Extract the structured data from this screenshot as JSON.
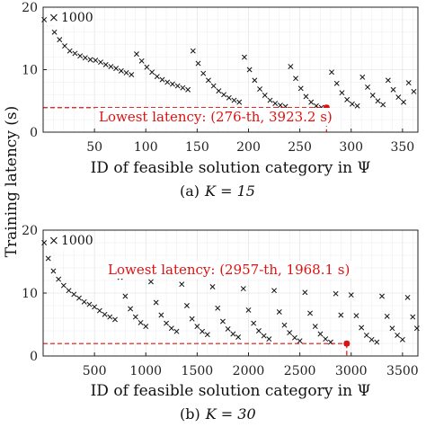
{
  "chart_data": [
    {
      "type": "scatter",
      "caption_prefix": "(a)",
      "caption_math": "K = 15",
      "xlabel": "ID of feasible solution category in Ψ",
      "ylabel": "Training latency (s)",
      "xlim": [
        0,
        365
      ],
      "ylim": [
        0,
        20
      ],
      "xticks": [
        50,
        100,
        150,
        200,
        250,
        300,
        350
      ],
      "yticks": [
        0,
        10,
        20
      ],
      "grid": true,
      "legend": {
        "marker": "×",
        "label": "1000",
        "placement": "top-left"
      },
      "annotation": {
        "text": "Lowest latency: (276-th, 3923.2 s)",
        "x": 276,
        "y": 3.92
      },
      "series": [
        {
          "marker": "x",
          "x": [
            1,
            6,
            11,
            16,
            21,
            26,
            31,
            36,
            41,
            46,
            51,
            56,
            61,
            66,
            71,
            76,
            81,
            86,
            91,
            96,
            101,
            106,
            111,
            116,
            121,
            126,
            131,
            136,
            141,
            146,
            151,
            156,
            161,
            166,
            171,
            176,
            181,
            186,
            191,
            196,
            201,
            206,
            211,
            216,
            221,
            226,
            231,
            236,
            241,
            246,
            251,
            256,
            261,
            266,
            271,
            276,
            281,
            286,
            291,
            296,
            301,
            306,
            311,
            316,
            321,
            326,
            331,
            336,
            341,
            346,
            351,
            356,
            361
          ],
          "y": [
            18.0,
            17.5,
            16.0,
            14.8,
            13.8,
            13.0,
            12.6,
            12.2,
            11.9,
            11.6,
            11.5,
            11.2,
            10.8,
            10.5,
            10.2,
            9.8,
            9.5,
            9.2,
            12.5,
            11.4,
            10.4,
            9.6,
            8.9,
            8.4,
            8.0,
            7.7,
            7.4,
            7.1,
            6.8,
            13.0,
            11.0,
            9.4,
            8.3,
            7.4,
            6.6,
            6.0,
            5.5,
            5.1,
            4.8,
            12.0,
            10.0,
            8.3,
            6.9,
            5.9,
            5.1,
            4.6,
            4.3,
            4.1,
            10.5,
            8.6,
            7.0,
            5.7,
            4.8,
            4.2,
            3.95,
            3.92,
            9.6,
            7.8,
            6.3,
            5.2,
            4.5,
            4.2,
            8.8,
            7.2,
            5.9,
            5.0,
            4.4,
            8.3,
            6.8,
            5.6,
            4.8,
            7.9,
            6.5
          ]
        }
      ]
    },
    {
      "type": "scatter",
      "caption_prefix": "(b)",
      "caption_math": "K = 30",
      "xlabel": "ID of feasible solution category in Ψ",
      "ylabel": "Training latency (s)",
      "xlim": [
        0,
        3650
      ],
      "ylim": [
        0,
        20
      ],
      "xticks": [
        500,
        1000,
        1500,
        2000,
        2500,
        3000,
        3500
      ],
      "yticks": [
        0,
        10,
        20
      ],
      "grid": true,
      "legend": {
        "marker": "×",
        "label": "1000",
        "placement": "top-left"
      },
      "annotation": {
        "text": "Lowest latency: (2957-th, 1968.1 s)",
        "x": 2957,
        "y": 1.97
      },
      "series": [
        {
          "marker": "x",
          "x": [
            10,
            50,
            100,
            150,
            200,
            250,
            300,
            350,
            400,
            450,
            500,
            550,
            600,
            650,
            700,
            750,
            800,
            850,
            900,
            950,
            1000,
            1050,
            1100,
            1150,
            1200,
            1250,
            1300,
            1350,
            1400,
            1450,
            1500,
            1550,
            1600,
            1650,
            1700,
            1750,
            1800,
            1850,
            1900,
            1950,
            2000,
            2050,
            2100,
            2150,
            2200,
            2250,
            2300,
            2350,
            2400,
            2450,
            2500,
            2550,
            2600,
            2650,
            2700,
            2750,
            2800,
            2850,
            2900,
            2957,
            3000,
            3050,
            3100,
            3150,
            3200,
            3250,
            3300,
            3350,
            3400,
            3450,
            3500,
            3550,
            3600,
            3640
          ],
          "y": [
            18.0,
            15.5,
            13.5,
            12.2,
            11.2,
            10.4,
            9.8,
            9.2,
            8.6,
            8.2,
            7.8,
            7.2,
            6.6,
            6.2,
            5.8,
            12.5,
            9.5,
            7.5,
            6.2,
            5.3,
            4.7,
            11.8,
            8.5,
            6.5,
            5.2,
            4.4,
            3.9,
            11.4,
            8.0,
            5.9,
            4.7,
            3.9,
            3.4,
            11.0,
            7.6,
            5.5,
            4.3,
            3.5,
            3.0,
            10.7,
            7.3,
            5.2,
            4.0,
            3.2,
            2.7,
            10.4,
            7.0,
            4.9,
            3.7,
            2.9,
            2.4,
            10.1,
            6.8,
            4.7,
            3.5,
            2.7,
            2.2,
            9.9,
            6.5,
            1.97,
            9.7,
            6.4,
            4.5,
            3.3,
            2.6,
            2.2,
            9.5,
            6.3,
            4.4,
            3.3,
            2.6,
            9.3,
            6.2,
            4.4
          ]
        }
      ]
    }
  ]
}
